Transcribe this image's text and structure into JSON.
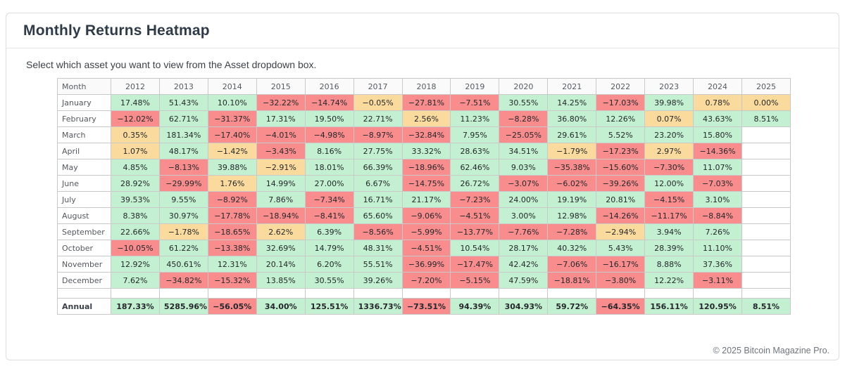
{
  "page": {
    "title": "Monthly Returns Heatmap",
    "description": "Select which asset you want to view from the Asset dropdown box.",
    "footer": "© 2025 Bitcoin Magazine Pro."
  },
  "colors": {
    "positive": "#c3f0d1",
    "negative": "#f98c8c",
    "neutral": "#fbdb9d",
    "neutral_threshold": 3,
    "header_bg": "#fafafa",
    "grid_border": "#c9c9c9"
  },
  "chart_data": {
    "type": "heatmap",
    "title": "Monthly Returns Heatmap",
    "legend_rule": "green = return <= -3% is red, |return| < 3% is yellow, return >= 3% is green",
    "columns": [
      "Month",
      "2012",
      "2013",
      "2014",
      "2015",
      "2016",
      "2017",
      "2018",
      "2019",
      "2020",
      "2021",
      "2022",
      "2023",
      "2024",
      "2025"
    ],
    "rows": [
      {
        "label": "January",
        "values": [
          "17.48%",
          "51.43%",
          "10.10%",
          "−32.22%",
          "−14.74%",
          "−0.05%",
          "−27.81%",
          "−7.51%",
          "30.55%",
          "14.25%",
          "−17.03%",
          "39.98%",
          "0.78%",
          "0.00%"
        ]
      },
      {
        "label": "February",
        "values": [
          "−12.02%",
          "62.71%",
          "−31.37%",
          "17.31%",
          "19.50%",
          "22.71%",
          "2.56%",
          "11.23%",
          "−8.28%",
          "36.80%",
          "12.26%",
          "0.07%",
          "43.63%",
          "8.51%"
        ]
      },
      {
        "label": "March",
        "values": [
          "0.35%",
          "181.34%",
          "−17.40%",
          "−4.01%",
          "−4.98%",
          "−8.97%",
          "−32.84%",
          "7.95%",
          "−25.05%",
          "29.61%",
          "5.52%",
          "23.20%",
          "15.80%",
          ""
        ]
      },
      {
        "label": "April",
        "values": [
          "1.07%",
          "48.17%",
          "−1.42%",
          "−3.43%",
          "8.16%",
          "27.75%",
          "33.32%",
          "28.63%",
          "34.51%",
          "−1.79%",
          "−17.23%",
          "2.97%",
          "−14.36%",
          ""
        ]
      },
      {
        "label": "May",
        "values": [
          "4.85%",
          "−8.13%",
          "39.88%",
          "−2.91%",
          "18.01%",
          "66.39%",
          "−18.96%",
          "62.46%",
          "9.03%",
          "−35.38%",
          "−15.60%",
          "−7.30%",
          "11.07%",
          ""
        ]
      },
      {
        "label": "June",
        "values": [
          "28.92%",
          "−29.99%",
          "1.76%",
          "14.99%",
          "27.00%",
          "6.67%",
          "−14.75%",
          "26.72%",
          "−3.07%",
          "−6.02%",
          "−39.26%",
          "12.00%",
          "−7.03%",
          ""
        ]
      },
      {
        "label": "July",
        "values": [
          "39.53%",
          "9.55%",
          "−8.92%",
          "7.86%",
          "−7.34%",
          "16.71%",
          "21.17%",
          "−7.23%",
          "24.00%",
          "19.19%",
          "20.81%",
          "−4.15%",
          "3.10%",
          ""
        ]
      },
      {
        "label": "August",
        "values": [
          "8.38%",
          "30.97%",
          "−17.78%",
          "−18.94%",
          "−8.41%",
          "65.60%",
          "−9.06%",
          "−4.51%",
          "3.00%",
          "12.98%",
          "−14.26%",
          "−11.17%",
          "−8.84%",
          ""
        ]
      },
      {
        "label": "September",
        "values": [
          "22.66%",
          "−1.78%",
          "−18.65%",
          "2.62%",
          "6.39%",
          "−8.56%",
          "−5.99%",
          "−13.77%",
          "−7.76%",
          "−7.28%",
          "−2.94%",
          "3.94%",
          "7.26%",
          ""
        ]
      },
      {
        "label": "October",
        "values": [
          "−10.05%",
          "61.22%",
          "−13.38%",
          "32.69%",
          "14.79%",
          "48.31%",
          "−4.51%",
          "10.54%",
          "28.17%",
          "40.32%",
          "5.43%",
          "28.39%",
          "11.10%",
          ""
        ]
      },
      {
        "label": "November",
        "values": [
          "12.92%",
          "450.61%",
          "12.31%",
          "20.14%",
          "6.20%",
          "55.51%",
          "−36.99%",
          "−17.47%",
          "42.42%",
          "−7.06%",
          "−16.17%",
          "8.88%",
          "37.36%",
          ""
        ]
      },
      {
        "label": "December",
        "values": [
          "7.62%",
          "−34.82%",
          "−15.32%",
          "13.85%",
          "30.55%",
          "39.26%",
          "−7.20%",
          "−5.15%",
          "47.59%",
          "−18.81%",
          "−3.80%",
          "12.22%",
          "−3.11%",
          ""
        ]
      }
    ],
    "annual_row": {
      "label": "Annual",
      "values": [
        "187.33%",
        "5285.96%",
        "−56.05%",
        "34.00%",
        "125.51%",
        "1336.73%",
        "−73.51%",
        "94.39%",
        "304.93%",
        "59.72%",
        "−64.35%",
        "156.11%",
        "120.95%",
        "8.51%"
      ]
    }
  }
}
